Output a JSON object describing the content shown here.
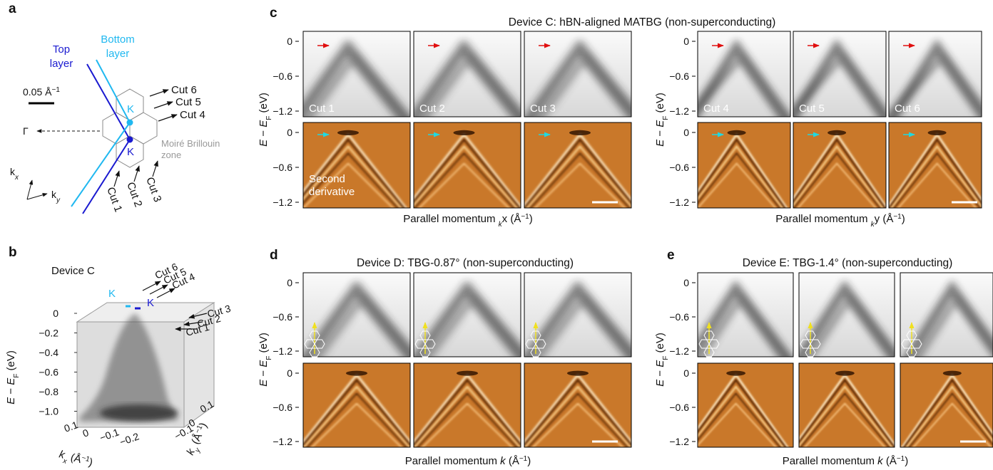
{
  "panel_a": {
    "letter": "a",
    "top_layer": [
      "Top",
      "layer"
    ],
    "bottom_layer": [
      "Bottom",
      "layer"
    ],
    "scale_bar": [
      "0.05 Å",
      "−1"
    ],
    "gamma": "Γ",
    "k_points": [
      "K",
      "K"
    ],
    "cuts": [
      "Cut 1",
      "Cut 2",
      "Cut 3",
      "Cut 4",
      "Cut 5",
      "Cut 6"
    ],
    "moire_bz": [
      "Moiré Brillouin",
      "zone"
    ],
    "kx": [
      "k",
      "x"
    ],
    "ky": [
      "k",
      "y"
    ]
  },
  "panel_b": {
    "letter": "b",
    "device": "Device C",
    "k_points": [
      "K",
      "K"
    ],
    "cuts": [
      "Cut 1",
      "Cut 2",
      "Cut 3",
      "Cut 4",
      "Cut 5",
      "Cut 6"
    ],
    "energy_ticks": [
      "0",
      "−0.2",
      "−0.4",
      "−0.6",
      "−0.8",
      "−1.0"
    ],
    "energy_label": [
      "E",
      " − ",
      "E",
      "F",
      " (eV)"
    ],
    "kx_ticks": [
      "0.1",
      "0",
      "−0.1",
      "−0.2"
    ],
    "kx_label": [
      "k",
      "x",
      " (Å",
      "−1",
      ")"
    ],
    "ky_ticks": [
      "0.1",
      "0",
      "−0.1"
    ],
    "ky_label": [
      "k",
      "y",
      " (Å",
      "−1",
      ")"
    ]
  },
  "panel_c": {
    "letter": "c",
    "title": "Device C: hBN-aligned MATBG (non-superconducting)",
    "yticks": [
      "0",
      "−0.6",
      "−1.2"
    ],
    "ylabel": [
      "E",
      " − ",
      "E",
      "F",
      " (eV)"
    ],
    "cut_labels": [
      "Cut 1",
      "Cut 2",
      "Cut 3",
      "Cut 4",
      "Cut 5",
      "Cut 6"
    ],
    "second_derivative": [
      "Second",
      "derivative"
    ],
    "xlabel_left": [
      "Parallel momentum ",
      "k",
      "x",
      " (Å",
      "−1",
      ")"
    ],
    "xlabel_right": [
      "Parallel momentum ",
      "k",
      "y",
      " (Å",
      "−1",
      ")"
    ]
  },
  "panel_d": {
    "letter": "d",
    "title": "Device D: TBG-0.87° (non-superconducting)",
    "yticks": [
      "0",
      "−0.6",
      "−1.2"
    ],
    "ylabel": [
      "E",
      " − ",
      "E",
      "F",
      " (eV)"
    ],
    "xlabel": [
      "Parallel momentum ",
      "k",
      " (Å",
      "−1",
      ")"
    ]
  },
  "panel_e": {
    "letter": "e",
    "title": "Device E: TBG-1.4° (non-superconducting)",
    "yticks": [
      "0",
      "−0.6",
      "−1.2"
    ],
    "ylabel": [
      "E",
      " − ",
      "E",
      "F",
      " (eV)"
    ],
    "xlabel": [
      "Parallel momentum ",
      "k",
      " (Å",
      "−1",
      ")"
    ]
  }
}
